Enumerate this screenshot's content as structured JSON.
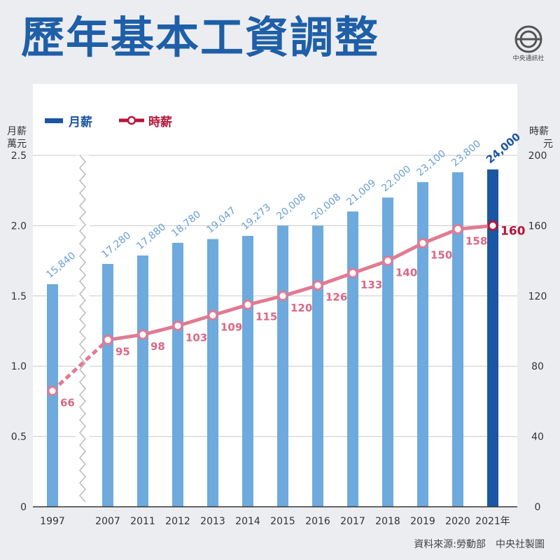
{
  "header": {
    "title": "歷年基本工資調整",
    "logo_name": "中央通訊社"
  },
  "footer": {
    "source": "資料來源:勞動部　中央社製圖"
  },
  "colors": {
    "bar": "#6eaadd",
    "bar_highlight": "#1a56a4",
    "line": "#e07b93",
    "line_highlight": "#b5163a",
    "bar_label": "#6a9fd0",
    "bar_label_highlight": "#1a56a4",
    "line_label": "#d96984",
    "background": "#ebedf0",
    "title": "#1f5fa8"
  },
  "chart_data": {
    "type": "bar",
    "categories": [
      "1997",
      "2007",
      "2011",
      "2012",
      "2013",
      "2014",
      "2015",
      "2016",
      "2017",
      "2018",
      "2019",
      "2020",
      "2021年"
    ],
    "series": [
      {
        "name": "月薪",
        "type": "bar",
        "axis": "left",
        "values": [
          1.584,
          1.728,
          1.788,
          1.878,
          1.9047,
          1.9273,
          2.0008,
          2.0008,
          2.1009,
          2.2,
          2.31,
          2.38,
          2.4
        ],
        "labels": [
          "15,840",
          "17,280",
          "17,880",
          "18,780",
          "19,047",
          "19,273",
          "20,008",
          "20,008",
          "21,009",
          "22,000",
          "23,100",
          "23,800",
          "24,000"
        ]
      },
      {
        "name": "時薪",
        "type": "line",
        "axis": "right",
        "values": [
          66,
          95,
          98,
          103,
          109,
          115,
          120,
          126,
          133,
          140,
          150,
          158,
          160
        ],
        "labels": [
          "66",
          "95",
          "98",
          "103",
          "109",
          "115",
          "120",
          "126",
          "133",
          "140",
          "150",
          "158",
          "160"
        ]
      }
    ],
    "left_axis": {
      "label_line1": "月薪",
      "label_line2": "萬元",
      "min": 0,
      "max": 2.5,
      "ticks": [
        "0",
        "0.5",
        "1.0",
        "1.5",
        "2.0",
        "2.5"
      ]
    },
    "right_axis": {
      "label_line1": "時薪",
      "label_line2": "元",
      "min": 0,
      "max": 200,
      "ticks": [
        "0",
        "40",
        "80",
        "120",
        "160",
        "200"
      ]
    },
    "axis_break_after": "1997",
    "highlight": "2021年",
    "legend_position": "top-left",
    "grid": true
  }
}
